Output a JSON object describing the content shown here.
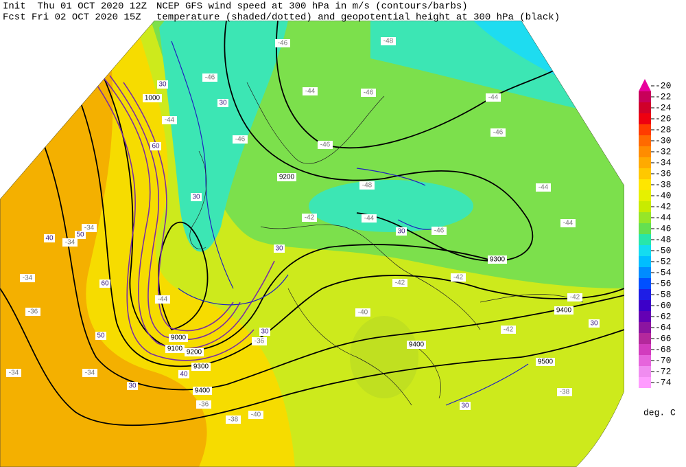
{
  "header": {
    "init": "Init  Thu 01 OCT 2020 12Z",
    "fcst": "Fcst Fri 02 OCT 2020 15Z",
    "title_line1": "NCEP GFS wind speed at 300 hPa in m/s (contours/barbs)",
    "title_line2": "temperature (shaded/dotted) and geopotential height at 300 hPa (black)"
  },
  "colorbar": {
    "unit": "deg. C",
    "levels": [
      -20,
      -22,
      -24,
      -26,
      -28,
      -30,
      -32,
      -34,
      -36,
      -38,
      -40,
      -42,
      -44,
      -46,
      -48,
      -50,
      -52,
      -54,
      -56,
      -58,
      -60,
      -62,
      -64,
      -66,
      -68,
      -70,
      -72,
      -74
    ],
    "colors": [
      "#e8009c",
      "#c8005a",
      "#d0002a",
      "#ee0010",
      "#ff3c00",
      "#ff6a00",
      "#ff8c00",
      "#ffaa00",
      "#ffc800",
      "#ffe600",
      "#e6f000",
      "#c8eb00",
      "#96e628",
      "#64e050",
      "#28e6aa",
      "#14dcf0",
      "#00beff",
      "#008cff",
      "#0050ff",
      "#1e1ee6",
      "#3c00c8",
      "#6400b4",
      "#8c14a0",
      "#b4289c",
      "#d23cbe",
      "#e664dc",
      "#f08cf0",
      "#ff9cff"
    ]
  },
  "map": {
    "height_labels": [
      "1000",
      "9200",
      "9300",
      "9400",
      "9400",
      "9500",
      "9400",
      "9300",
      "9200",
      "9100",
      "9000"
    ],
    "wind_labels": [
      "30",
      "30",
      "30",
      "30",
      "30",
      "30",
      "30",
      "30",
      "30",
      "40",
      "40",
      "50",
      "50",
      "60",
      "60"
    ],
    "temperature_labels": [
      "-46",
      "-48",
      "-46",
      "-44",
      "-46",
      "-44",
      "-46",
      "-44",
      "-46",
      "-46",
      "-48",
      "-44",
      "-42",
      "-44",
      "-46",
      "-44",
      "-34",
      "-34",
      "-34",
      "-36",
      "-42",
      "-42",
      "-44",
      "-40",
      "-42",
      "-42",
      "-36",
      "-34",
      "-34",
      "-38",
      "-36",
      "-38",
      "-40"
    ]
  }
}
